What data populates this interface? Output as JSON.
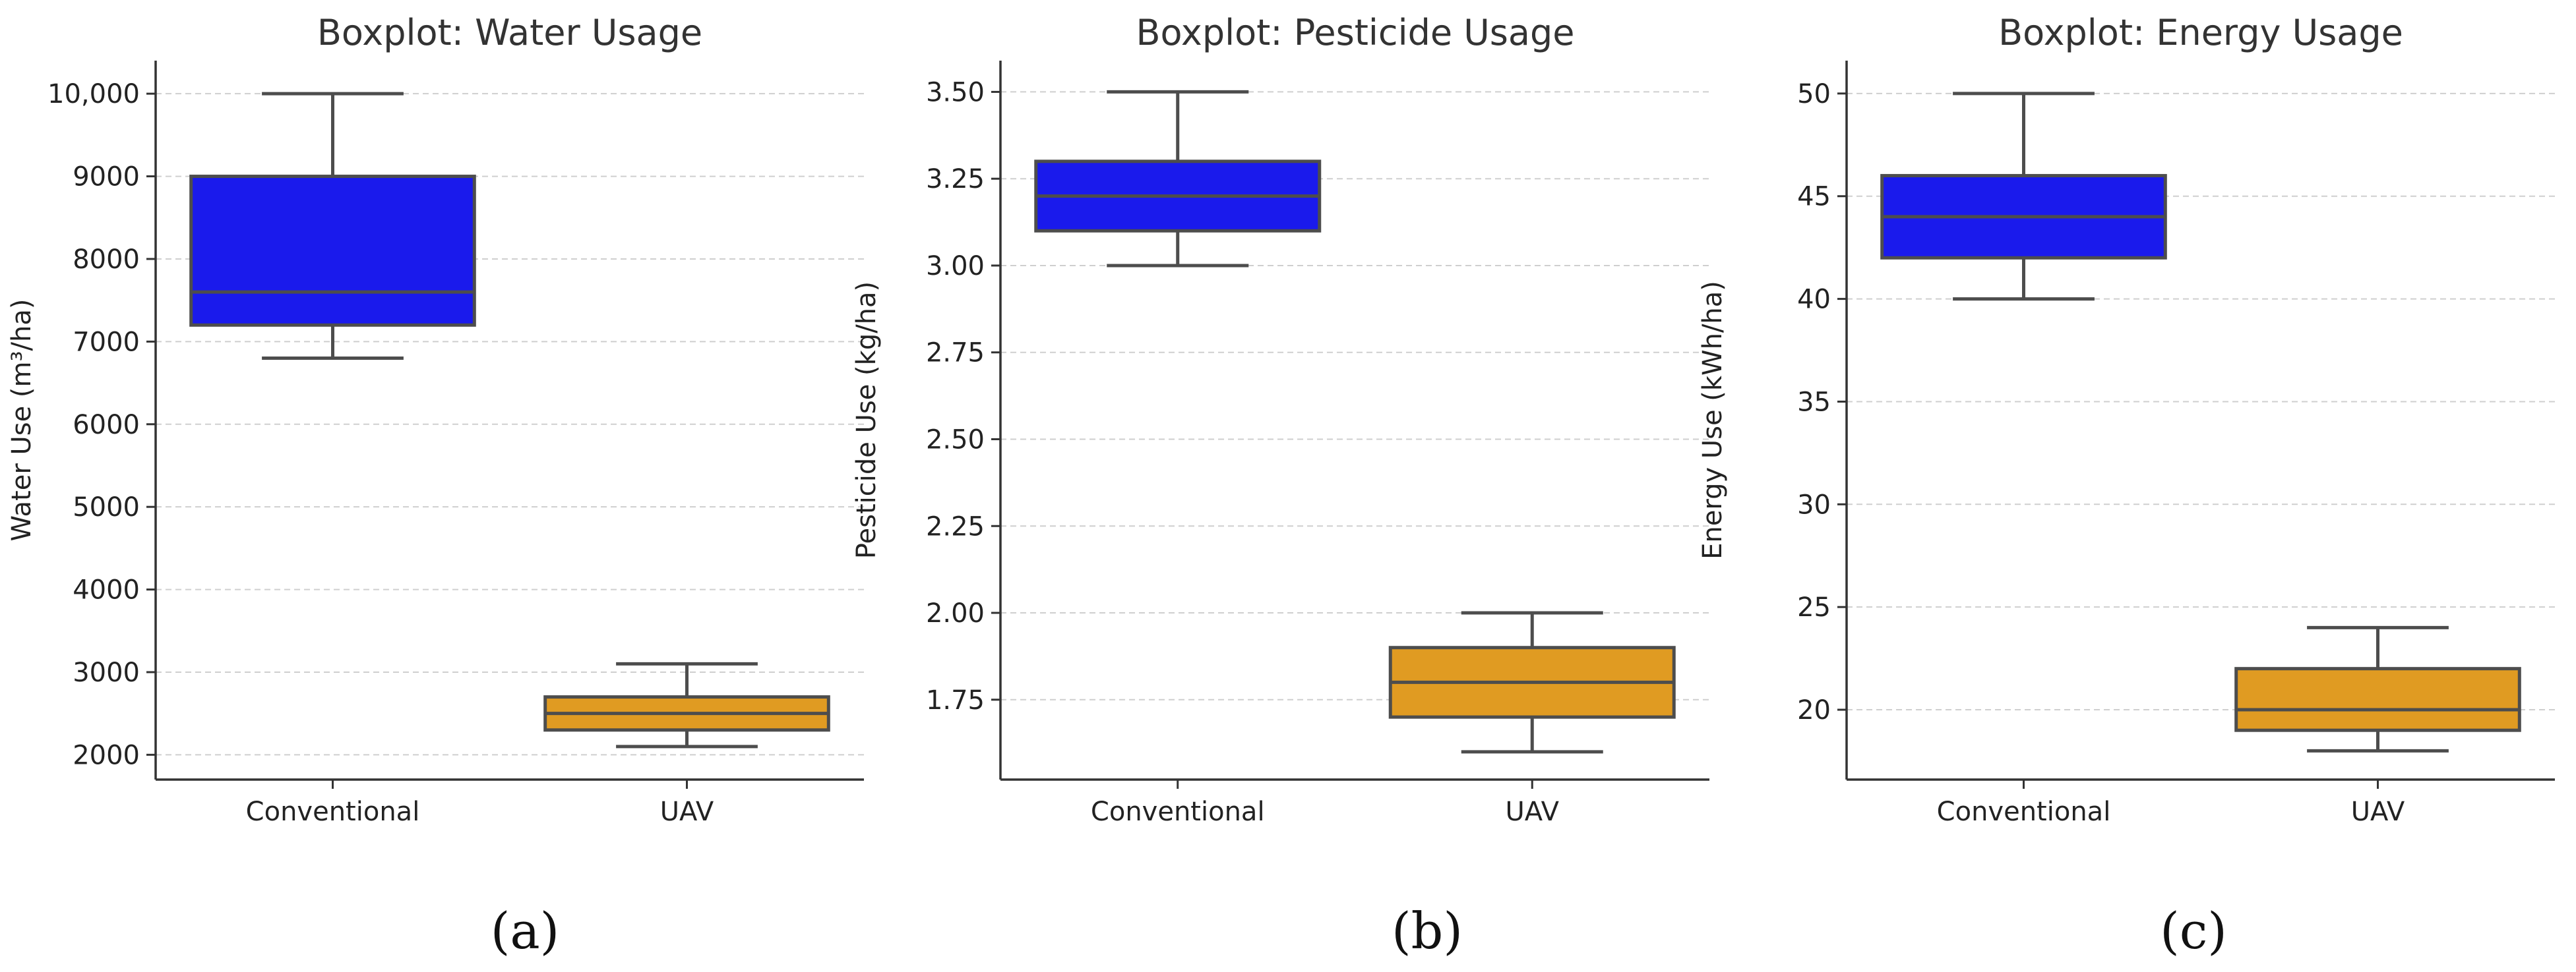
{
  "colors": {
    "conventional": "#1a1aec",
    "uav": "#e09b22",
    "edge": "#4d4d4d",
    "grid": "#cfcfcf",
    "text": "#333333"
  },
  "chart_data": [
    {
      "type": "box",
      "title": "Boxplot: Water Usage",
      "xlabel": "",
      "ylabel": "Water Use (m³/ha)",
      "categories": [
        "Conventional",
        "UAV"
      ],
      "ylim": [
        1700,
        10400
      ],
      "yticks": [
        2000,
        3000,
        4000,
        5000,
        6000,
        7000,
        8000,
        9000,
        10000
      ],
      "ytick_labels": [
        "2000",
        "3000",
        "4000",
        "5000",
        "6000",
        "7000",
        "8000",
        "9000",
        "10,000"
      ],
      "boxes": [
        {
          "name": "Conventional",
          "whisker_low": 6800,
          "q1": 7200,
          "median": 7600,
          "q3": 9000,
          "whisker_high": 10000
        },
        {
          "name": "UAV",
          "whisker_low": 2100,
          "q1": 2300,
          "median": 2500,
          "q3": 2700,
          "whisker_high": 3100
        }
      ],
      "panel_label": "(a)"
    },
    {
      "type": "box",
      "title": "Boxplot: Pesticide Usage",
      "xlabel": "",
      "ylabel": "Pesticide Use (kg/ha)",
      "categories": [
        "Conventional",
        "UAV"
      ],
      "ylim": [
        1.52,
        3.59
      ],
      "yticks": [
        1.75,
        2.0,
        2.25,
        2.5,
        2.75,
        3.0,
        3.25,
        3.5
      ],
      "ytick_labels": [
        "1.75",
        "2.00",
        "2.25",
        "2.50",
        "2.75",
        "3.00",
        "3.25",
        "3.50"
      ],
      "boxes": [
        {
          "name": "Conventional",
          "whisker_low": 3.0,
          "q1": 3.1,
          "median": 3.2,
          "q3": 3.3,
          "whisker_high": 3.5
        },
        {
          "name": "UAV",
          "whisker_low": 1.6,
          "q1": 1.7,
          "median": 1.8,
          "q3": 1.9,
          "whisker_high": 2.0
        }
      ],
      "panel_label": "(b)"
    },
    {
      "type": "box",
      "title": "Boxplot: Energy Usage",
      "xlabel": "",
      "ylabel": "Energy Use (kWh/ha)",
      "categories": [
        "Conventional",
        "UAV"
      ],
      "ylim": [
        16.6,
        51.6
      ],
      "yticks": [
        20,
        25,
        30,
        35,
        40,
        45,
        50
      ],
      "ytick_labels": [
        "20",
        "25",
        "30",
        "35",
        "40",
        "45",
        "50"
      ],
      "boxes": [
        {
          "name": "Conventional",
          "whisker_low": 40,
          "q1": 42,
          "median": 44,
          "q3": 46,
          "whisker_high": 50
        },
        {
          "name": "UAV",
          "whisker_low": 18,
          "q1": 19,
          "median": 20,
          "q3": 22,
          "whisker_high": 24
        }
      ],
      "panel_label": "(c)"
    }
  ]
}
